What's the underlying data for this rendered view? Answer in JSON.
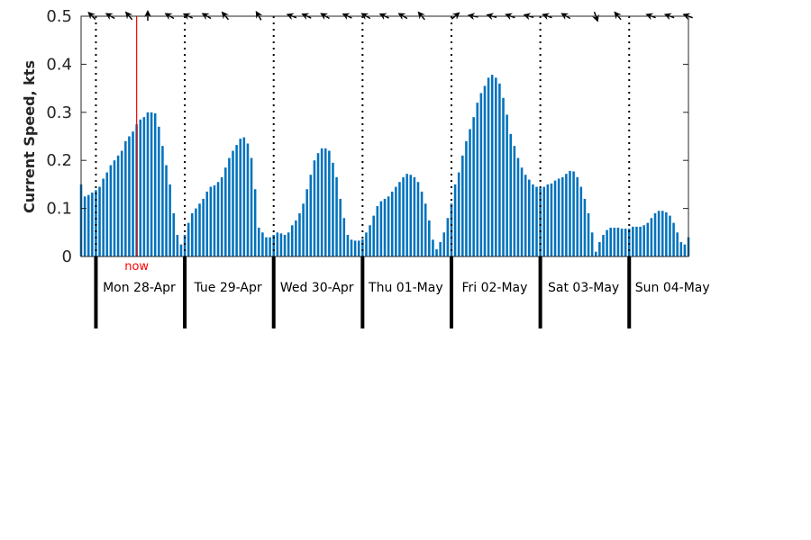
{
  "chart_data": {
    "type": "bar",
    "ylabel": "Current Speed, kts",
    "ylim": [
      0,
      0.5
    ],
    "yticks": [
      "0",
      "0.1",
      "0.2",
      "0.3",
      "0.4",
      "0.5"
    ],
    "interval_hours": 1,
    "start": "2025-04-27 20:00",
    "days": [
      "Mon 28-Apr",
      "Tue 29-Apr",
      "Wed 30-Apr",
      "Thu 01-May",
      "Fri 02-May",
      "Sat 03-May",
      "Sun 04-May"
    ],
    "now_label": "now",
    "now_time": "2025-04-28 11:00",
    "bar_color": "#0072bd",
    "now_color": "#ff0000",
    "values": [
      0.15,
      0.125,
      0.128,
      0.133,
      0.138,
      0.145,
      0.162,
      0.175,
      0.19,
      0.2,
      0.21,
      0.22,
      0.24,
      0.25,
      0.26,
      0.275,
      0.285,
      0.29,
      0.3,
      0.3,
      0.298,
      0.27,
      0.23,
      0.19,
      0.15,
      0.09,
      0.045,
      0.025,
      0.045,
      0.07,
      0.09,
      0.1,
      0.11,
      0.12,
      0.135,
      0.145,
      0.148,
      0.155,
      0.165,
      0.185,
      0.205,
      0.22,
      0.232,
      0.245,
      0.248,
      0.235,
      0.205,
      0.14,
      0.06,
      0.05,
      0.04,
      0.04,
      0.045,
      0.05,
      0.048,
      0.045,
      0.05,
      0.065,
      0.075,
      0.09,
      0.11,
      0.14,
      0.17,
      0.2,
      0.215,
      0.225,
      0.225,
      0.22,
      0.195,
      0.165,
      0.12,
      0.08,
      0.045,
      0.035,
      0.033,
      0.033,
      0.036,
      0.05,
      0.065,
      0.085,
      0.105,
      0.115,
      0.12,
      0.125,
      0.135,
      0.145,
      0.155,
      0.165,
      0.172,
      0.17,
      0.165,
      0.155,
      0.135,
      0.11,
      0.075,
      0.035,
      0.015,
      0.03,
      0.05,
      0.08,
      0.11,
      0.15,
      0.175,
      0.21,
      0.24,
      0.265,
      0.29,
      0.32,
      0.34,
      0.355,
      0.372,
      0.378,
      0.372,
      0.36,
      0.33,
      0.295,
      0.255,
      0.23,
      0.205,
      0.185,
      0.17,
      0.16,
      0.15,
      0.145,
      0.142,
      0.145,
      0.15,
      0.152,
      0.158,
      0.162,
      0.165,
      0.172,
      0.178,
      0.177,
      0.165,
      0.145,
      0.12,
      0.09,
      0.05,
      0.01,
      0.03,
      0.045,
      0.055,
      0.06,
      0.06,
      0.06,
      0.058,
      0.058,
      0.058,
      0.062,
      0.062,
      0.062,
      0.065,
      0.07,
      0.08,
      0.09,
      0.095,
      0.095,
      0.092,
      0.085,
      0.07,
      0.05,
      0.03,
      0.025,
      0.04
    ],
    "direction_arrows": [
      {
        "time": "2025-04-27 23:00",
        "angle": 315
      },
      {
        "time": "2025-04-28 04:00",
        "angle": 300
      },
      {
        "time": "2025-04-28 09:00",
        "angle": 320
      },
      {
        "time": "2025-04-28 14:00",
        "angle": 0
      },
      {
        "time": "2025-04-28 20:00",
        "angle": 300
      },
      {
        "time": "2025-04-29 01:00",
        "angle": 295
      },
      {
        "time": "2025-04-29 06:00",
        "angle": 300
      },
      {
        "time": "2025-04-29 11:00",
        "angle": 320
      },
      {
        "time": "2025-04-29 20:00",
        "angle": 330
      },
      {
        "time": "2025-04-30 05:00",
        "angle": 290
      },
      {
        "time": "2025-04-30 09:00",
        "angle": 295
      },
      {
        "time": "2025-04-30 14:00",
        "angle": 300
      },
      {
        "time": "2025-04-30 20:00",
        "angle": 295
      },
      {
        "time": "2025-05-01 01:00",
        "angle": 300
      },
      {
        "time": "2025-05-01 06:00",
        "angle": 295
      },
      {
        "time": "2025-05-01 11:00",
        "angle": 300
      },
      {
        "time": "2025-05-01 16:00",
        "angle": 320
      },
      {
        "time": "2025-05-02 01:00",
        "angle": 50
      },
      {
        "time": "2025-05-02 06:00",
        "angle": 280
      },
      {
        "time": "2025-05-02 11:00",
        "angle": 285
      },
      {
        "time": "2025-05-02 16:00",
        "angle": 290
      },
      {
        "time": "2025-05-02 21:00",
        "angle": 285
      },
      {
        "time": "2025-05-03 02:00",
        "angle": 290
      },
      {
        "time": "2025-05-03 07:00",
        "angle": 300
      },
      {
        "time": "2025-05-03 15:00",
        "angle": 160
      },
      {
        "time": "2025-05-03 21:00",
        "angle": 320
      },
      {
        "time": "2025-05-04 06:00",
        "angle": 290
      },
      {
        "time": "2025-05-04 11:00",
        "angle": 290
      },
      {
        "time": "2025-05-04 16:00",
        "angle": 290
      }
    ]
  }
}
